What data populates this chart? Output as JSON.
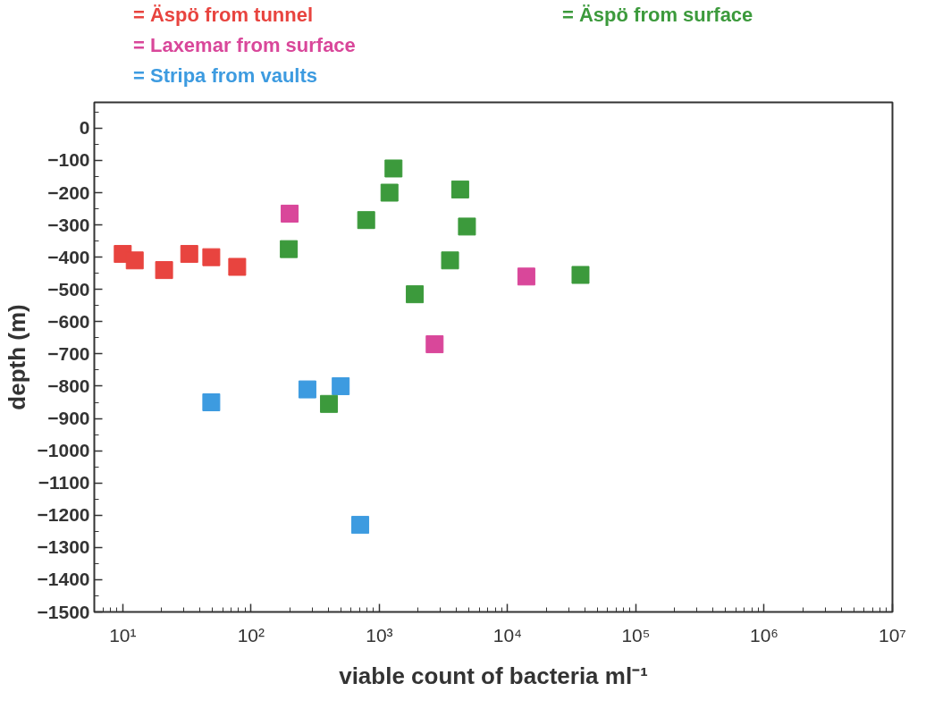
{
  "chart_data": {
    "type": "scatter",
    "xlabel": "viable count of bacteria ml⁻¹",
    "ylabel": "depth (m)",
    "log": "x",
    "marker": "square",
    "grid": false,
    "legend": "top left",
    "xlim": [
      6,
      10000000
    ],
    "ylim": [
      -1500,
      80
    ],
    "xticks": [
      {
        "value": 10,
        "label": "10¹"
      },
      {
        "value": 100,
        "label": "10²"
      },
      {
        "value": 1000,
        "label": "10³"
      },
      {
        "value": 10000,
        "label": "10⁴"
      },
      {
        "value": 100000,
        "label": "10⁵"
      },
      {
        "value": 1000000,
        "label": "10⁶"
      },
      {
        "value": 10000000,
        "label": "10⁷"
      }
    ],
    "yticks": [
      0,
      -100,
      -200,
      -300,
      -400,
      -500,
      -600,
      -700,
      -800,
      -900,
      -1000,
      -1100,
      -1200,
      -1300,
      -1400,
      -1500
    ],
    "series": [
      {
        "name": "= Äspö from tunnel",
        "color": "#e8443f",
        "x": [
          10,
          12.4,
          21,
          33,
          49,
          78
        ],
        "values": [
          -390,
          -410,
          -440,
          -390,
          -400,
          -430
        ]
      },
      {
        "name": "= Laxemar from surface",
        "color": "#d9479a",
        "x": [
          200,
          2700,
          14000
        ],
        "values": [
          -265,
          -670,
          -460
        ]
      },
      {
        "name": "= Stripa from vaults",
        "color": "#3d9be0",
        "x": [
          49,
          275,
          500,
          710
        ],
        "values": [
          -850,
          -810,
          -800,
          -1230
        ]
      },
      {
        "name": "= Äspö from surface",
        "color": "#3c9a3c",
        "x": [
          197,
          790,
          1200,
          1290,
          1890,
          405,
          4270,
          4820,
          3560,
          37000
        ],
        "values": [
          -375,
          -285,
          -200,
          -125,
          -515,
          -855,
          -190,
          -305,
          -410,
          -455
        ]
      }
    ]
  }
}
